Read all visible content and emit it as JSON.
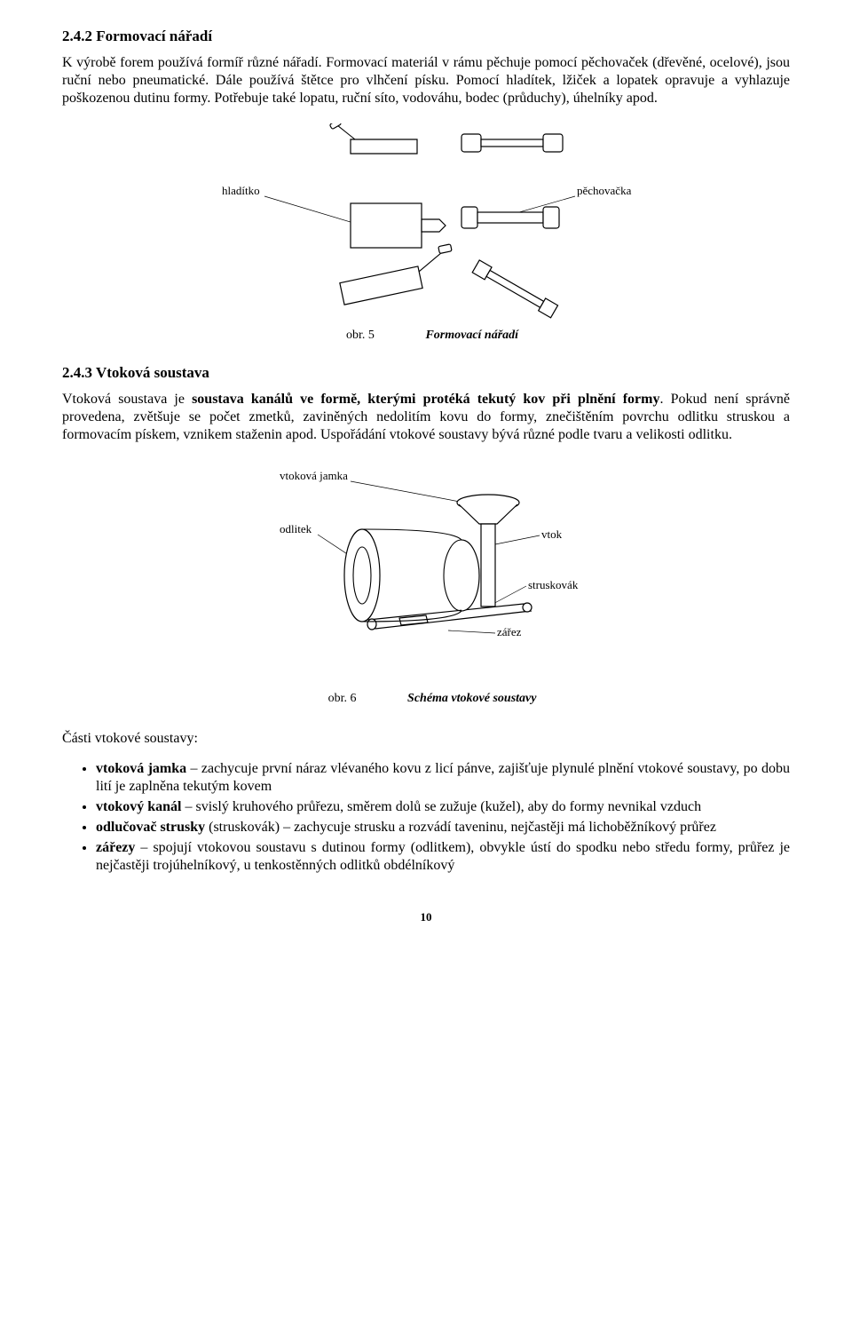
{
  "section242": {
    "heading": "2.4.2  Formovací nářadí",
    "para": "K výrobě forem používá formíř různé nářadí. Formovací materiál v rámu pěchuje pomocí pěchovaček (dřevěné, ocelové), jsou ruční nebo pneumatické. Dále používá štětce pro vlhčení písku. Pomocí hladítek, lžiček a lopatek opravuje a vyhlazuje poškozenou dutinu formy. Potřebuje také lopatu, ruční síto, vodováhu, bodec (průduchy), úhelníky apod."
  },
  "fig5": {
    "label_left": "hladítko",
    "label_right": "pěchovačka",
    "caption_num": "obr. 5",
    "caption_title": "Formovací nářadí"
  },
  "section243": {
    "heading": "2.4.3  Vtoková soustava",
    "para": "Vtoková soustava je soustava kanálů ve formě, kterými protéká tekutý kov při plnění formy. Pokud není správně provedena, zvětšuje se počet zmetků, zaviněných nedolitím kovu do formy, znečištěním povrchu odlitku struskou a formovacím pískem, vznikem staženin apod. Uspořádání vtokové soustavy bývá různé podle tvaru a velikosti odlitku.",
    "para_lead": "Vtoková soustava je ",
    "para_bold": "soustava kanálů ve formě, kterými protéká tekutý kov při plnění formy",
    "para_rest": ". Pokud není správně provedena, zvětšuje se počet zmetků, zaviněných nedolitím kovu do formy, znečištěním povrchu odlitku struskou a formovacím pískem, vznikem staženin apod. Uspořádání vtokové soustavy bývá různé podle tvaru a velikosti odlitku."
  },
  "fig6": {
    "label_jamka": "vtoková jamka",
    "label_odlitek": "odlitek",
    "label_vtok": "vtok",
    "label_struskovak": "struskovák",
    "label_zarez": "zářez",
    "caption_num": "obr. 6",
    "caption_title": "Schéma vtokové soustavy"
  },
  "parts": {
    "heading": "Části vtokové soustavy:",
    "items": [
      {
        "b": "vtoková jamka",
        "rest": " – zachycuje první náraz vlévaného kovu z licí pánve, zajišťuje plynulé plnění vtokové soustavy, po dobu lití je zaplněna tekutým kovem"
      },
      {
        "b": "vtokový kanál",
        "rest": " – svislý kruhového průřezu, směrem dolů se zužuje (kužel), aby do formy nevnikal vzduch"
      },
      {
        "b": "odlučovač strusky",
        "rest": " (struskovák) – zachycuje strusku a rozvádí taveninu, nejčastěji má lichoběžníkový průřez"
      },
      {
        "b": "zářezy",
        "rest": " – spojují vtokovou soustavu s dutinou formy (odlitkem), obvykle ústí do spodku nebo středu formy, průřez je nejčastěji trojúhelníkový, u tenkostěnných odlitků obdélníkový"
      }
    ]
  },
  "pagenum": "10"
}
